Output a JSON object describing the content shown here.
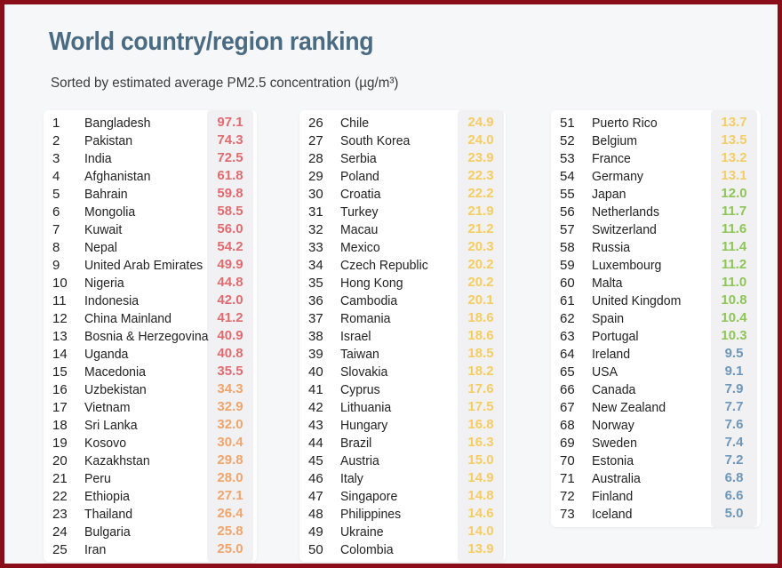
{
  "header": {
    "title": "World country/region ranking",
    "subtitle": "Sorted by estimated average PM2.5 concentration (µg/m³)"
  },
  "colors": {
    "red": "#e06b6e",
    "orange": "#f0a46a",
    "yellow": "#f3cd62",
    "green": "#8dc556",
    "blue": "#6e96b8"
  },
  "columns": [
    {
      "rows": [
        {
          "rank": "1",
          "name": "Bangladesh",
          "value": "97.1",
          "color": "red"
        },
        {
          "rank": "2",
          "name": "Pakistan",
          "value": "74.3",
          "color": "red"
        },
        {
          "rank": "3",
          "name": "India",
          "value": "72.5",
          "color": "red"
        },
        {
          "rank": "4",
          "name": "Afghanistan",
          "value": "61.8",
          "color": "red"
        },
        {
          "rank": "5",
          "name": "Bahrain",
          "value": "59.8",
          "color": "red"
        },
        {
          "rank": "6",
          "name": "Mongolia",
          "value": "58.5",
          "color": "red"
        },
        {
          "rank": "7",
          "name": "Kuwait",
          "value": "56.0",
          "color": "red"
        },
        {
          "rank": "8",
          "name": "Nepal",
          "value": "54.2",
          "color": "red"
        },
        {
          "rank": "9",
          "name": "United Arab Emirates",
          "value": "49.9",
          "color": "red"
        },
        {
          "rank": "10",
          "name": "Nigeria",
          "value": "44.8",
          "color": "red"
        },
        {
          "rank": "11",
          "name": "Indonesia",
          "value": "42.0",
          "color": "red"
        },
        {
          "rank": "12",
          "name": "China Mainland",
          "value": "41.2",
          "color": "red"
        },
        {
          "rank": "13",
          "name": "Bosnia & Herzegovina",
          "value": "40.9",
          "color": "red"
        },
        {
          "rank": "14",
          "name": "Uganda",
          "value": "40.8",
          "color": "red"
        },
        {
          "rank": "15",
          "name": "Macedonia",
          "value": "35.5",
          "color": "red"
        },
        {
          "rank": "16",
          "name": "Uzbekistan",
          "value": "34.3",
          "color": "orange"
        },
        {
          "rank": "17",
          "name": "Vietnam",
          "value": "32.9",
          "color": "orange"
        },
        {
          "rank": "18",
          "name": "Sri Lanka",
          "value": "32.0",
          "color": "orange"
        },
        {
          "rank": "19",
          "name": "Kosovo",
          "value": "30.4",
          "color": "orange"
        },
        {
          "rank": "20",
          "name": "Kazakhstan",
          "value": "29.8",
          "color": "orange"
        },
        {
          "rank": "21",
          "name": "Peru",
          "value": "28.0",
          "color": "orange"
        },
        {
          "rank": "22",
          "name": "Ethiopia",
          "value": "27.1",
          "color": "orange"
        },
        {
          "rank": "23",
          "name": "Thailand",
          "value": "26.4",
          "color": "orange"
        },
        {
          "rank": "24",
          "name": "Bulgaria",
          "value": "25.8",
          "color": "orange"
        },
        {
          "rank": "25",
          "name": "Iran",
          "value": "25.0",
          "color": "orange"
        }
      ]
    },
    {
      "rows": [
        {
          "rank": "26",
          "name": "Chile",
          "value": "24.9",
          "color": "yellow"
        },
        {
          "rank": "27",
          "name": "South Korea",
          "value": "24.0",
          "color": "yellow"
        },
        {
          "rank": "28",
          "name": "Serbia",
          "value": "23.9",
          "color": "yellow"
        },
        {
          "rank": "29",
          "name": "Poland",
          "value": "22.3",
          "color": "yellow"
        },
        {
          "rank": "30",
          "name": "Croatia",
          "value": "22.2",
          "color": "yellow"
        },
        {
          "rank": "31",
          "name": "Turkey",
          "value": "21.9",
          "color": "yellow"
        },
        {
          "rank": "32",
          "name": "Macau",
          "value": "21.2",
          "color": "yellow"
        },
        {
          "rank": "33",
          "name": "Mexico",
          "value": "20.3",
          "color": "yellow"
        },
        {
          "rank": "34",
          "name": "Czech Republic",
          "value": "20.2",
          "color": "yellow"
        },
        {
          "rank": "35",
          "name": "Hong Kong",
          "value": "20.2",
          "color": "yellow"
        },
        {
          "rank": "36",
          "name": "Cambodia",
          "value": "20.1",
          "color": "yellow"
        },
        {
          "rank": "37",
          "name": "Romania",
          "value": "18.6",
          "color": "yellow"
        },
        {
          "rank": "38",
          "name": "Israel",
          "value": "18.6",
          "color": "yellow"
        },
        {
          "rank": "39",
          "name": "Taiwan",
          "value": "18.5",
          "color": "yellow"
        },
        {
          "rank": "40",
          "name": "Slovakia",
          "value": "18.2",
          "color": "yellow"
        },
        {
          "rank": "41",
          "name": "Cyprus",
          "value": "17.6",
          "color": "yellow"
        },
        {
          "rank": "42",
          "name": "Lithuania",
          "value": "17.5",
          "color": "yellow"
        },
        {
          "rank": "43",
          "name": "Hungary",
          "value": "16.8",
          "color": "yellow"
        },
        {
          "rank": "44",
          "name": "Brazil",
          "value": "16.3",
          "color": "yellow"
        },
        {
          "rank": "45",
          "name": "Austria",
          "value": "15.0",
          "color": "yellow"
        },
        {
          "rank": "46",
          "name": "Italy",
          "value": "14.9",
          "color": "yellow"
        },
        {
          "rank": "47",
          "name": "Singapore",
          "value": "14.8",
          "color": "yellow"
        },
        {
          "rank": "48",
          "name": "Philippines",
          "value": "14.6",
          "color": "yellow"
        },
        {
          "rank": "49",
          "name": "Ukraine",
          "value": "14.0",
          "color": "yellow"
        },
        {
          "rank": "50",
          "name": "Colombia",
          "value": "13.9",
          "color": "yellow"
        }
      ]
    },
    {
      "rows": [
        {
          "rank": "51",
          "name": "Puerto Rico",
          "value": "13.7",
          "color": "yellow"
        },
        {
          "rank": "52",
          "name": "Belgium",
          "value": "13.5",
          "color": "yellow"
        },
        {
          "rank": "53",
          "name": "France",
          "value": "13.2",
          "color": "yellow"
        },
        {
          "rank": "54",
          "name": "Germany",
          "value": "13.1",
          "color": "yellow"
        },
        {
          "rank": "55",
          "name": "Japan",
          "value": "12.0",
          "color": "green"
        },
        {
          "rank": "56",
          "name": "Netherlands",
          "value": "11.7",
          "color": "green"
        },
        {
          "rank": "57",
          "name": "Switzerland",
          "value": "11.6",
          "color": "green"
        },
        {
          "rank": "58",
          "name": "Russia",
          "value": "11.4",
          "color": "green"
        },
        {
          "rank": "59",
          "name": "Luxembourg",
          "value": "11.2",
          "color": "green"
        },
        {
          "rank": "60",
          "name": "Malta",
          "value": "11.0",
          "color": "green"
        },
        {
          "rank": "61",
          "name": "United Kingdom",
          "value": "10.8",
          "color": "green"
        },
        {
          "rank": "62",
          "name": "Spain",
          "value": "10.4",
          "color": "green"
        },
        {
          "rank": "63",
          "name": "Portugal",
          "value": "10.3",
          "color": "green"
        },
        {
          "rank": "64",
          "name": "Ireland",
          "value": "9.5",
          "color": "blue"
        },
        {
          "rank": "65",
          "name": "USA",
          "value": "9.1",
          "color": "blue"
        },
        {
          "rank": "66",
          "name": "Canada",
          "value": "7.9",
          "color": "blue"
        },
        {
          "rank": "67",
          "name": "New Zealand",
          "value": "7.7",
          "color": "blue"
        },
        {
          "rank": "68",
          "name": "Norway",
          "value": "7.6",
          "color": "blue"
        },
        {
          "rank": "69",
          "name": "Sweden",
          "value": "7.4",
          "color": "blue"
        },
        {
          "rank": "70",
          "name": "Estonia",
          "value": "7.2",
          "color": "blue"
        },
        {
          "rank": "71",
          "name": "Australia",
          "value": "6.8",
          "color": "blue"
        },
        {
          "rank": "72",
          "name": "Finland",
          "value": "6.6",
          "color": "blue"
        },
        {
          "rank": "73",
          "name": "Iceland",
          "value": "5.0",
          "color": "blue"
        }
      ]
    }
  ]
}
